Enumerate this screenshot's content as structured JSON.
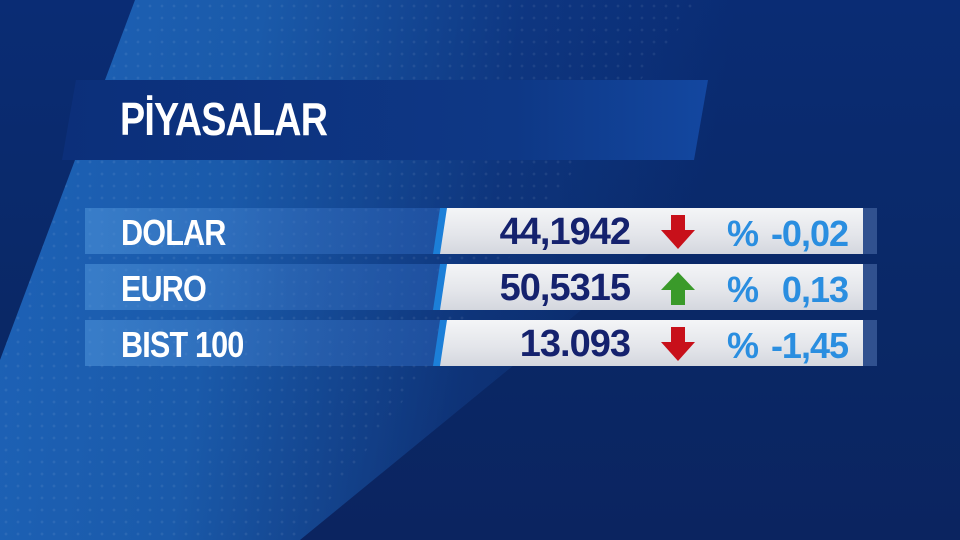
{
  "title": "PİYASALAR",
  "colors": {
    "up": "#3a9a2a",
    "down": "#c8101a",
    "value": "#15226e",
    "percent": "#2a8ee0"
  },
  "rows": [
    {
      "label": "DOLAR",
      "value": "44,1942",
      "direction": "down",
      "arrow_icon": "arrow-down-icon",
      "percent_sign": "%",
      "change": "-0,02"
    },
    {
      "label": "EURO",
      "value": "50,5315",
      "direction": "up",
      "arrow_icon": "arrow-up-icon",
      "percent_sign": "%",
      "change": "0,13"
    },
    {
      "label": "BIST 100",
      "value": "13.093",
      "direction": "down",
      "arrow_icon": "arrow-down-icon",
      "percent_sign": "%",
      "change": "-1,45"
    }
  ]
}
